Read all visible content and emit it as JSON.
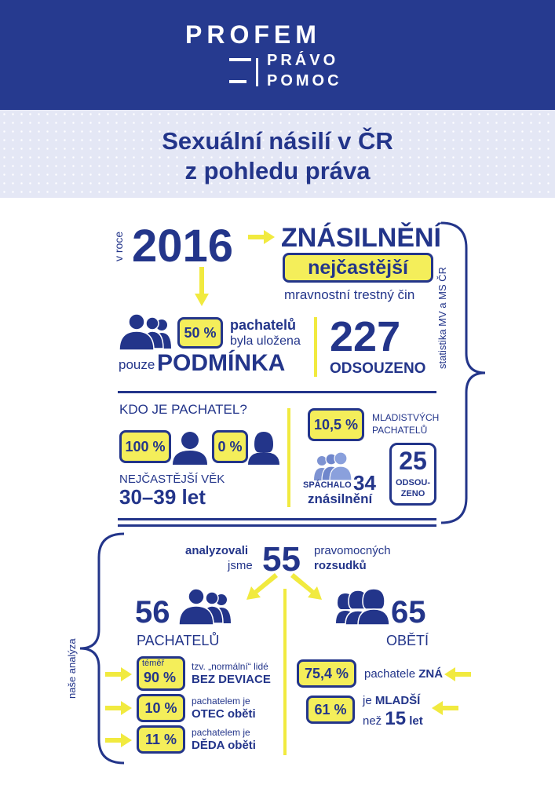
{
  "colors": {
    "navy": "#23358a",
    "yellow": "#f4ee5a",
    "header_blue": "#263a8f",
    "band": "#e4e7f5"
  },
  "logo": {
    "line1": "PROFEM",
    "line2": "PRÁVO",
    "line3": "POMOC"
  },
  "title": {
    "line1": "Sexuální násilí v ČR",
    "line2": "z pohledu práva"
  },
  "stats": {
    "v_roce": "v roce",
    "year": "2016",
    "crime": "ZNÁSILNĚNÍ",
    "most_common": "nejčastější",
    "crime_type": "mravnostní trestný čin",
    "pct_50": "50 %",
    "pachatelu": "pachatelů",
    "byla_ulozena": "byla uložena",
    "pouze": "pouze",
    "podminka": "PODMÍNKA",
    "convicted_count": "227",
    "convicted_label": "ODSOUZENO",
    "who_question": "KDO JE PACHATEL?",
    "pct_100": "100 %",
    "pct_0": "0 %",
    "age_label": "NEJČASTĚJŠÍ VĚK",
    "age_value": "30–39 let",
    "pct_juvenile": "10,5 %",
    "juvenile_label_1": "MLADISTVÝCH",
    "juvenile_label_2": "PACHATELŮ",
    "spachalo": "SPÁCHALO",
    "rapes_count": "34",
    "rapes_label": "znásilnění",
    "juv_convicted_count": "25",
    "juv_convicted_l1": "ODSOU-",
    "juv_convicted_l2": "ZENO",
    "side_label": "statistika MV a MS ČR"
  },
  "analysis": {
    "side_label": "naše analýza",
    "analyzovali": "analyzovali",
    "jsme": "jsme",
    "count": "55",
    "pravomocnych": "pravomocných",
    "rozsudku": "rozsudků",
    "perpetrators_count": "56",
    "perpetrators_label": "PACHATELŮ",
    "victims_count": "65",
    "victims_label": "OBĚTÍ",
    "row1_small": "téměř",
    "row1_pct": "90 %",
    "row1_text1": "tzv. „normální“ lidé",
    "row1_text2": "BEZ DEVIACE",
    "row2_pct": "10 %",
    "row2_text1": "pachatelem je",
    "row2_text2": "OTEC oběti",
    "row3_pct": "11 %",
    "row3_text1": "pachatelem je",
    "row3_text2": "DĚDA oběti",
    "right1_pct": "75,4 %",
    "right1_text": "pachatele",
    "right1_bold": "ZNÁ",
    "right2_pct": "61 %",
    "right2_je": "je",
    "right2_bold": "MLADŠÍ",
    "right2_nez": "než",
    "right2_num": "15",
    "right2_let": "let"
  }
}
